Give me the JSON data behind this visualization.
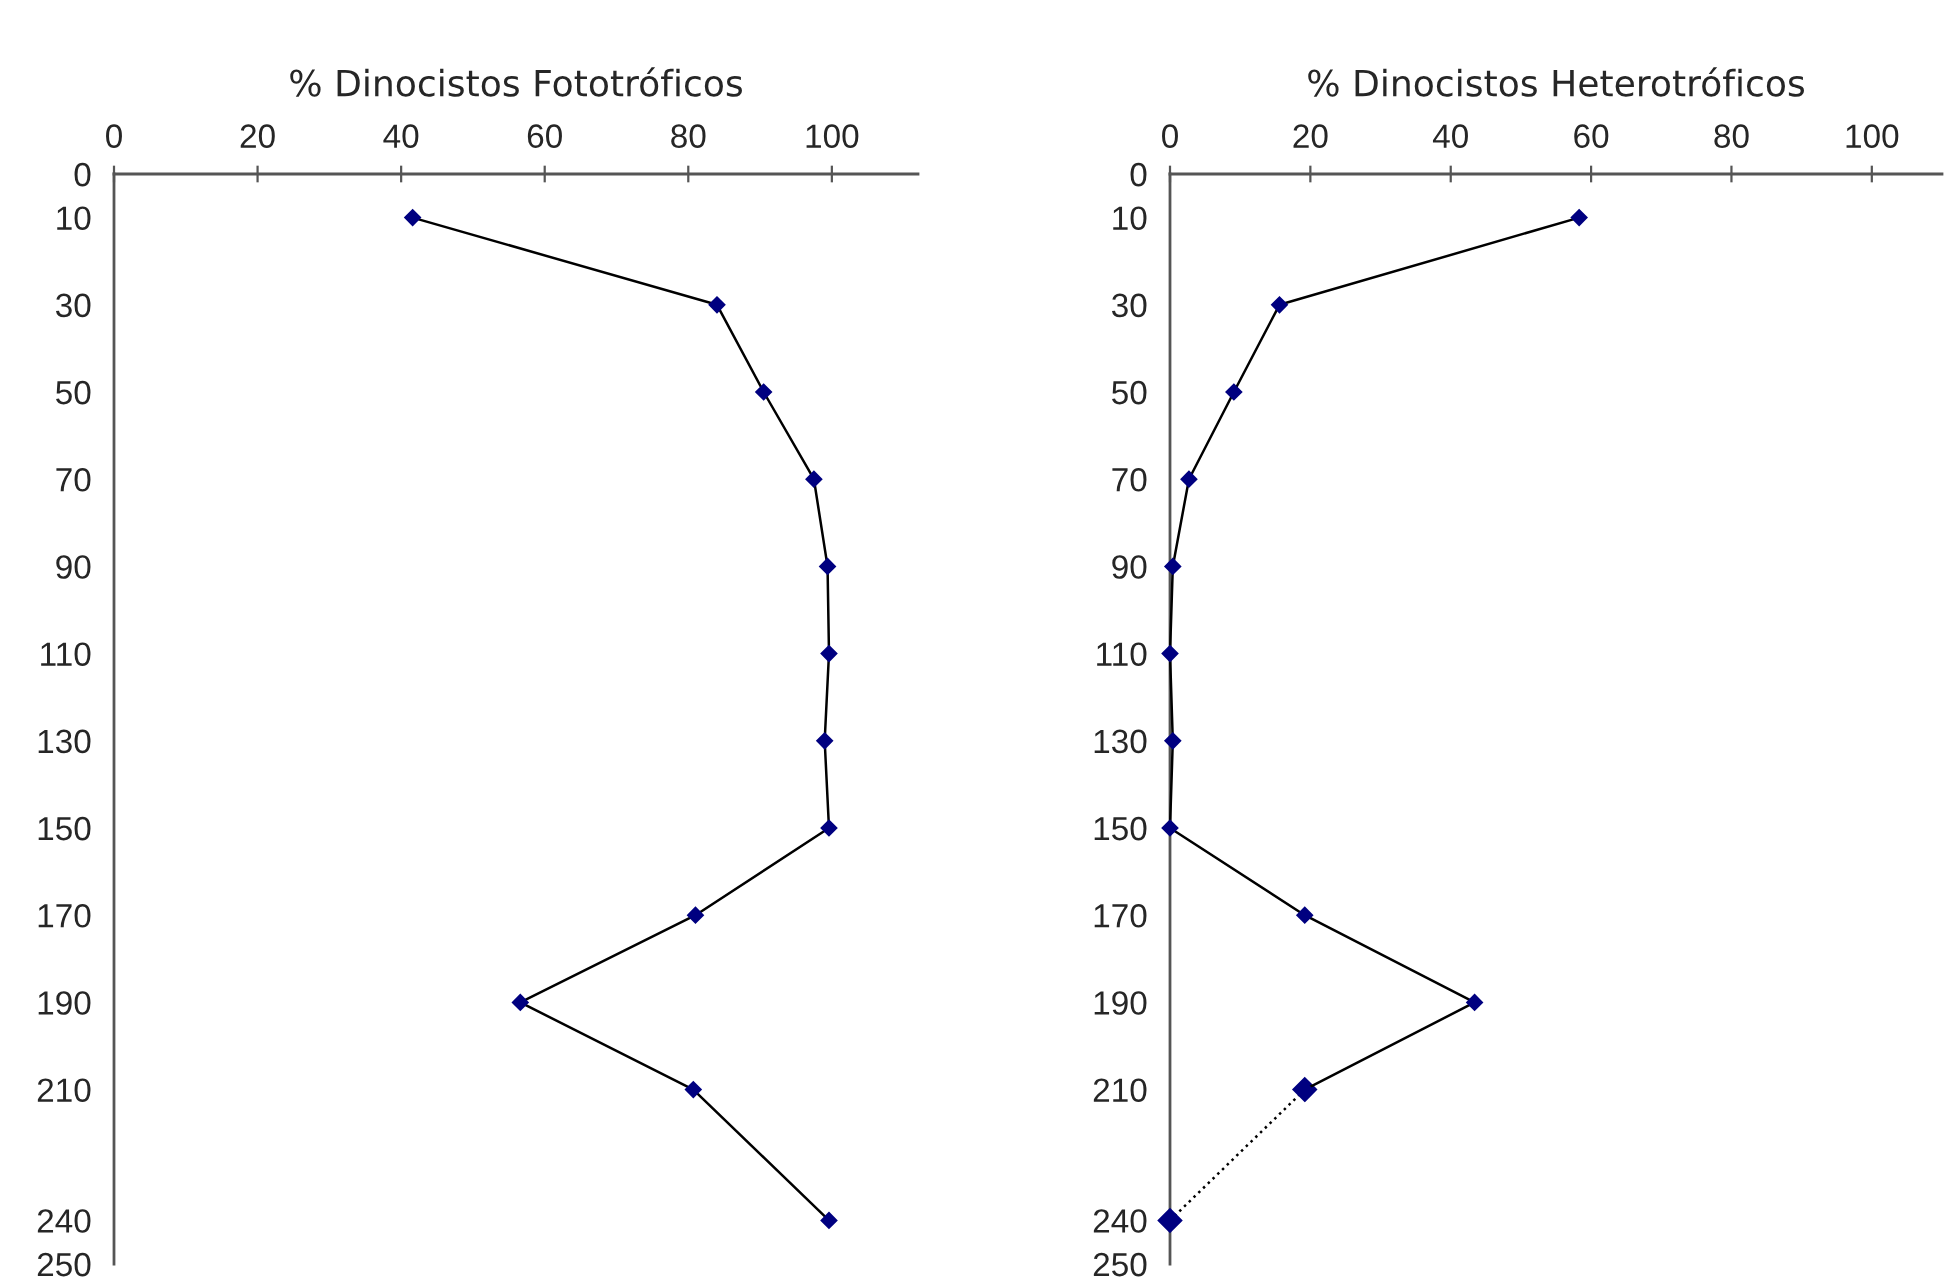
{
  "chart_data": [
    {
      "type": "line",
      "title": "% Dinocistos Fototróficos",
      "orientation": "horizontal",
      "marker": "diamond",
      "grid": false,
      "legend": false,
      "xlim": [
        0,
        112
      ],
      "xticks": [
        0,
        20,
        40,
        60,
        80,
        100
      ],
      "ylim": [
        250,
        0
      ],
      "yticks": [
        0,
        10,
        30,
        50,
        70,
        90,
        110,
        130,
        150,
        170,
        190,
        210,
        240,
        250
      ],
      "series": [
        {
          "color": "#000000",
          "line_style": "solid",
          "x": [
            10,
            30,
            50,
            70,
            90,
            110,
            130,
            150,
            170,
            190,
            210,
            240
          ],
          "values": [
            41.6,
            84,
            90.5,
            97.5,
            99.4,
            99.6,
            99,
            99.6,
            81,
            56.6,
            80.7,
            99.6
          ]
        }
      ]
    },
    {
      "type": "line",
      "title": "% Dinocistos Heterotróficos",
      "orientation": "horizontal",
      "marker": "diamond",
      "grid": false,
      "legend": false,
      "xlim": [
        0,
        110
      ],
      "xticks": [
        0,
        20,
        40,
        60,
        80,
        100
      ],
      "ylim": [
        250,
        0
      ],
      "yticks": [
        0,
        10,
        30,
        50,
        70,
        90,
        110,
        130,
        150,
        170,
        190,
        210,
        240,
        250
      ],
      "series": [
        {
          "color": "#000000",
          "line_style": "solid",
          "x": [
            10,
            30,
            50,
            70,
            90,
            110,
            130,
            150,
            170,
            190,
            210
          ],
          "values": [
            58.3,
            15.6,
            9.1,
            2.7,
            0.4,
            0,
            0.4,
            0,
            19.2,
            43.4,
            19.2
          ]
        },
        {
          "color": "#000000",
          "line_style": "dotted",
          "x": [
            210,
            240
          ],
          "values": [
            19.2,
            0
          ]
        }
      ]
    }
  ]
}
